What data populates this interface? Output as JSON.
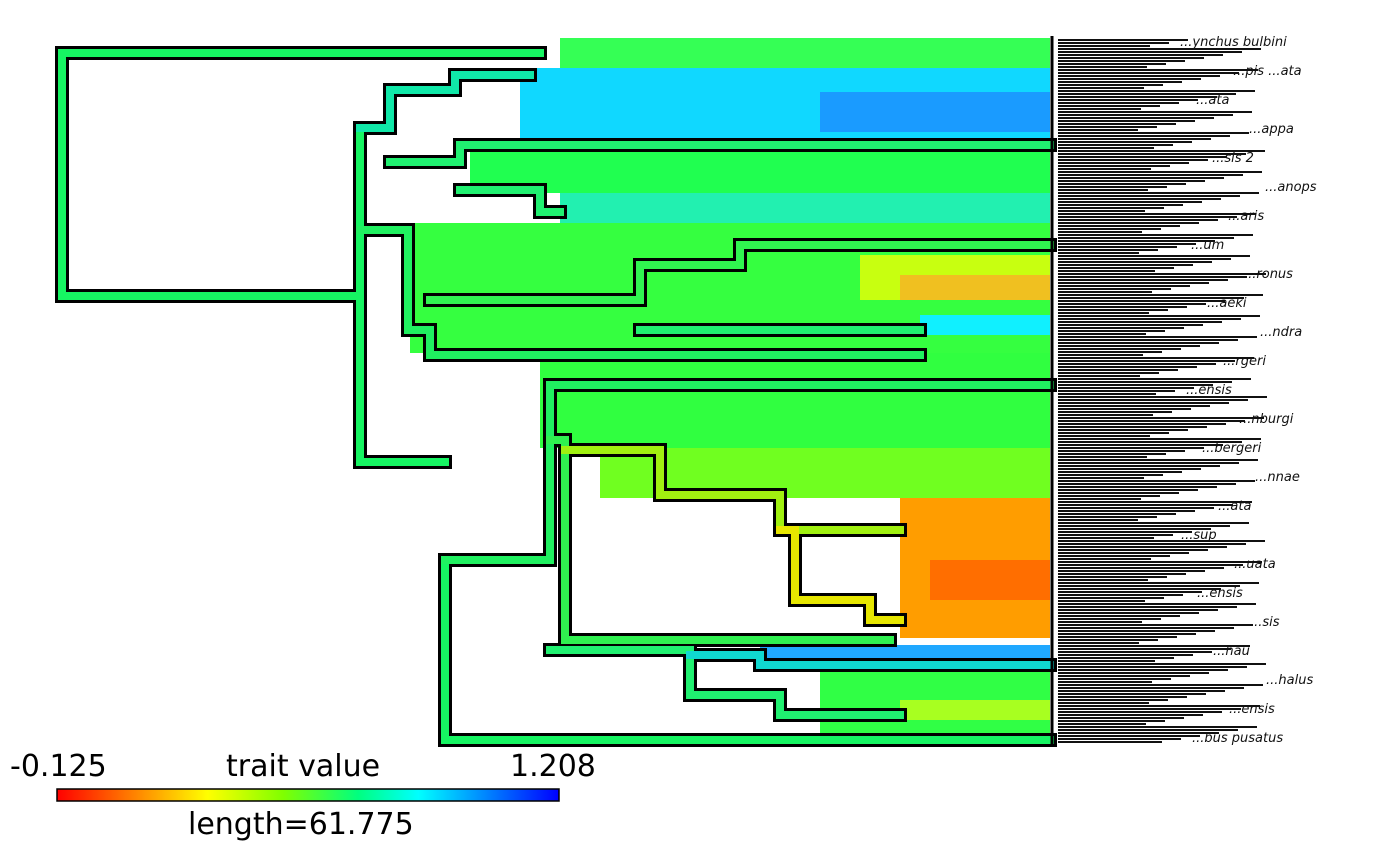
{
  "legend": {
    "min_label": "-0.125",
    "max_label": "1.208",
    "title": "trait value",
    "length_label": "length=61.775",
    "gradient_colors": [
      "#ff0000",
      "#ff7f00",
      "#ffff00",
      "#80ff00",
      "#00ff80",
      "#00ffff",
      "#0080ff",
      "#0000ff"
    ]
  },
  "tips": {
    "labels": [
      "...ynchus bulbini",
      "...pis ...ata",
      "...ata",
      "...appa",
      "...sis 2",
      "...anops",
      "...aris",
      "...um",
      "...ronus",
      "...aeki",
      "...ndra",
      "...rgeri",
      "...ensis",
      "...nburgi",
      "...bergeri",
      "...nnae",
      "...ata",
      "...sup",
      "...uata",
      "...ensis",
      "...sis",
      "...hau",
      "...halus",
      "...ensis",
      "...bus pusatus"
    ]
  },
  "colors": {
    "branch_outline": "#000000",
    "background": "#ffffff"
  }
}
